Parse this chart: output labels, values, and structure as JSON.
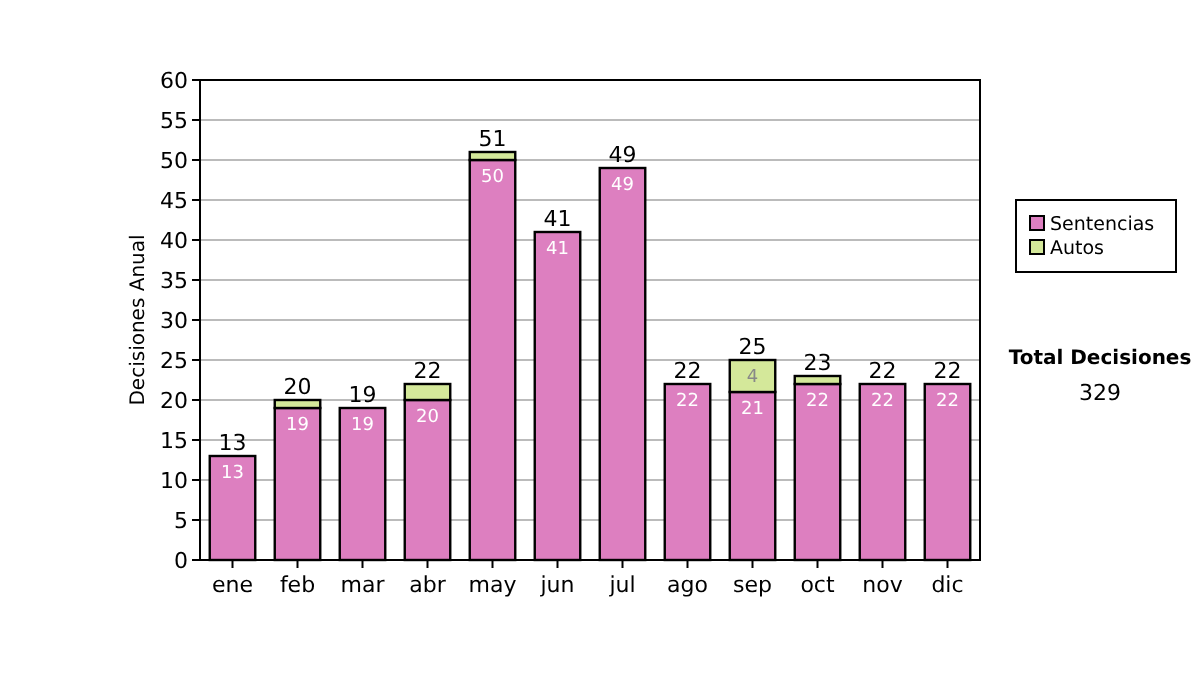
{
  "chart_data": {
    "type": "bar",
    "stacked": true,
    "ylabel": "Decisiones Anual",
    "categories": [
      "ene",
      "feb",
      "mar",
      "abr",
      "may",
      "jun",
      "jul",
      "ago",
      "sep",
      "oct",
      "nov",
      "dic"
    ],
    "series": [
      {
        "name": "Sentencias",
        "color": "#dd7fc0",
        "values": [
          13,
          19,
          19,
          20,
          50,
          41,
          49,
          22,
          21,
          22,
          22,
          22
        ],
        "value_labels": [
          "13",
          "19",
          "19",
          "20",
          "50",
          "41",
          "49",
          "22",
          "21",
          "22",
          "22",
          "22"
        ]
      },
      {
        "name": "Autos",
        "color": "#d4e89a",
        "values": [
          0,
          1,
          0,
          2,
          1,
          0,
          0,
          0,
          4,
          1,
          0,
          0
        ],
        "value_labels": [
          null,
          null,
          null,
          null,
          null,
          null,
          null,
          null,
          "4",
          null,
          null,
          null
        ]
      }
    ],
    "totals": [
      "13",
      "20",
      "19",
      "22",
      "51",
      "41",
      "49",
      "22",
      "25",
      "23",
      "22",
      "22"
    ],
    "ylim": [
      0,
      60
    ],
    "yticks": [
      0,
      5,
      10,
      15,
      20,
      25,
      30,
      35,
      40,
      45,
      50,
      55,
      60
    ],
    "grid": "y",
    "legend": "right",
    "annotations": [
      "Total Decisiones",
      "329"
    ]
  }
}
